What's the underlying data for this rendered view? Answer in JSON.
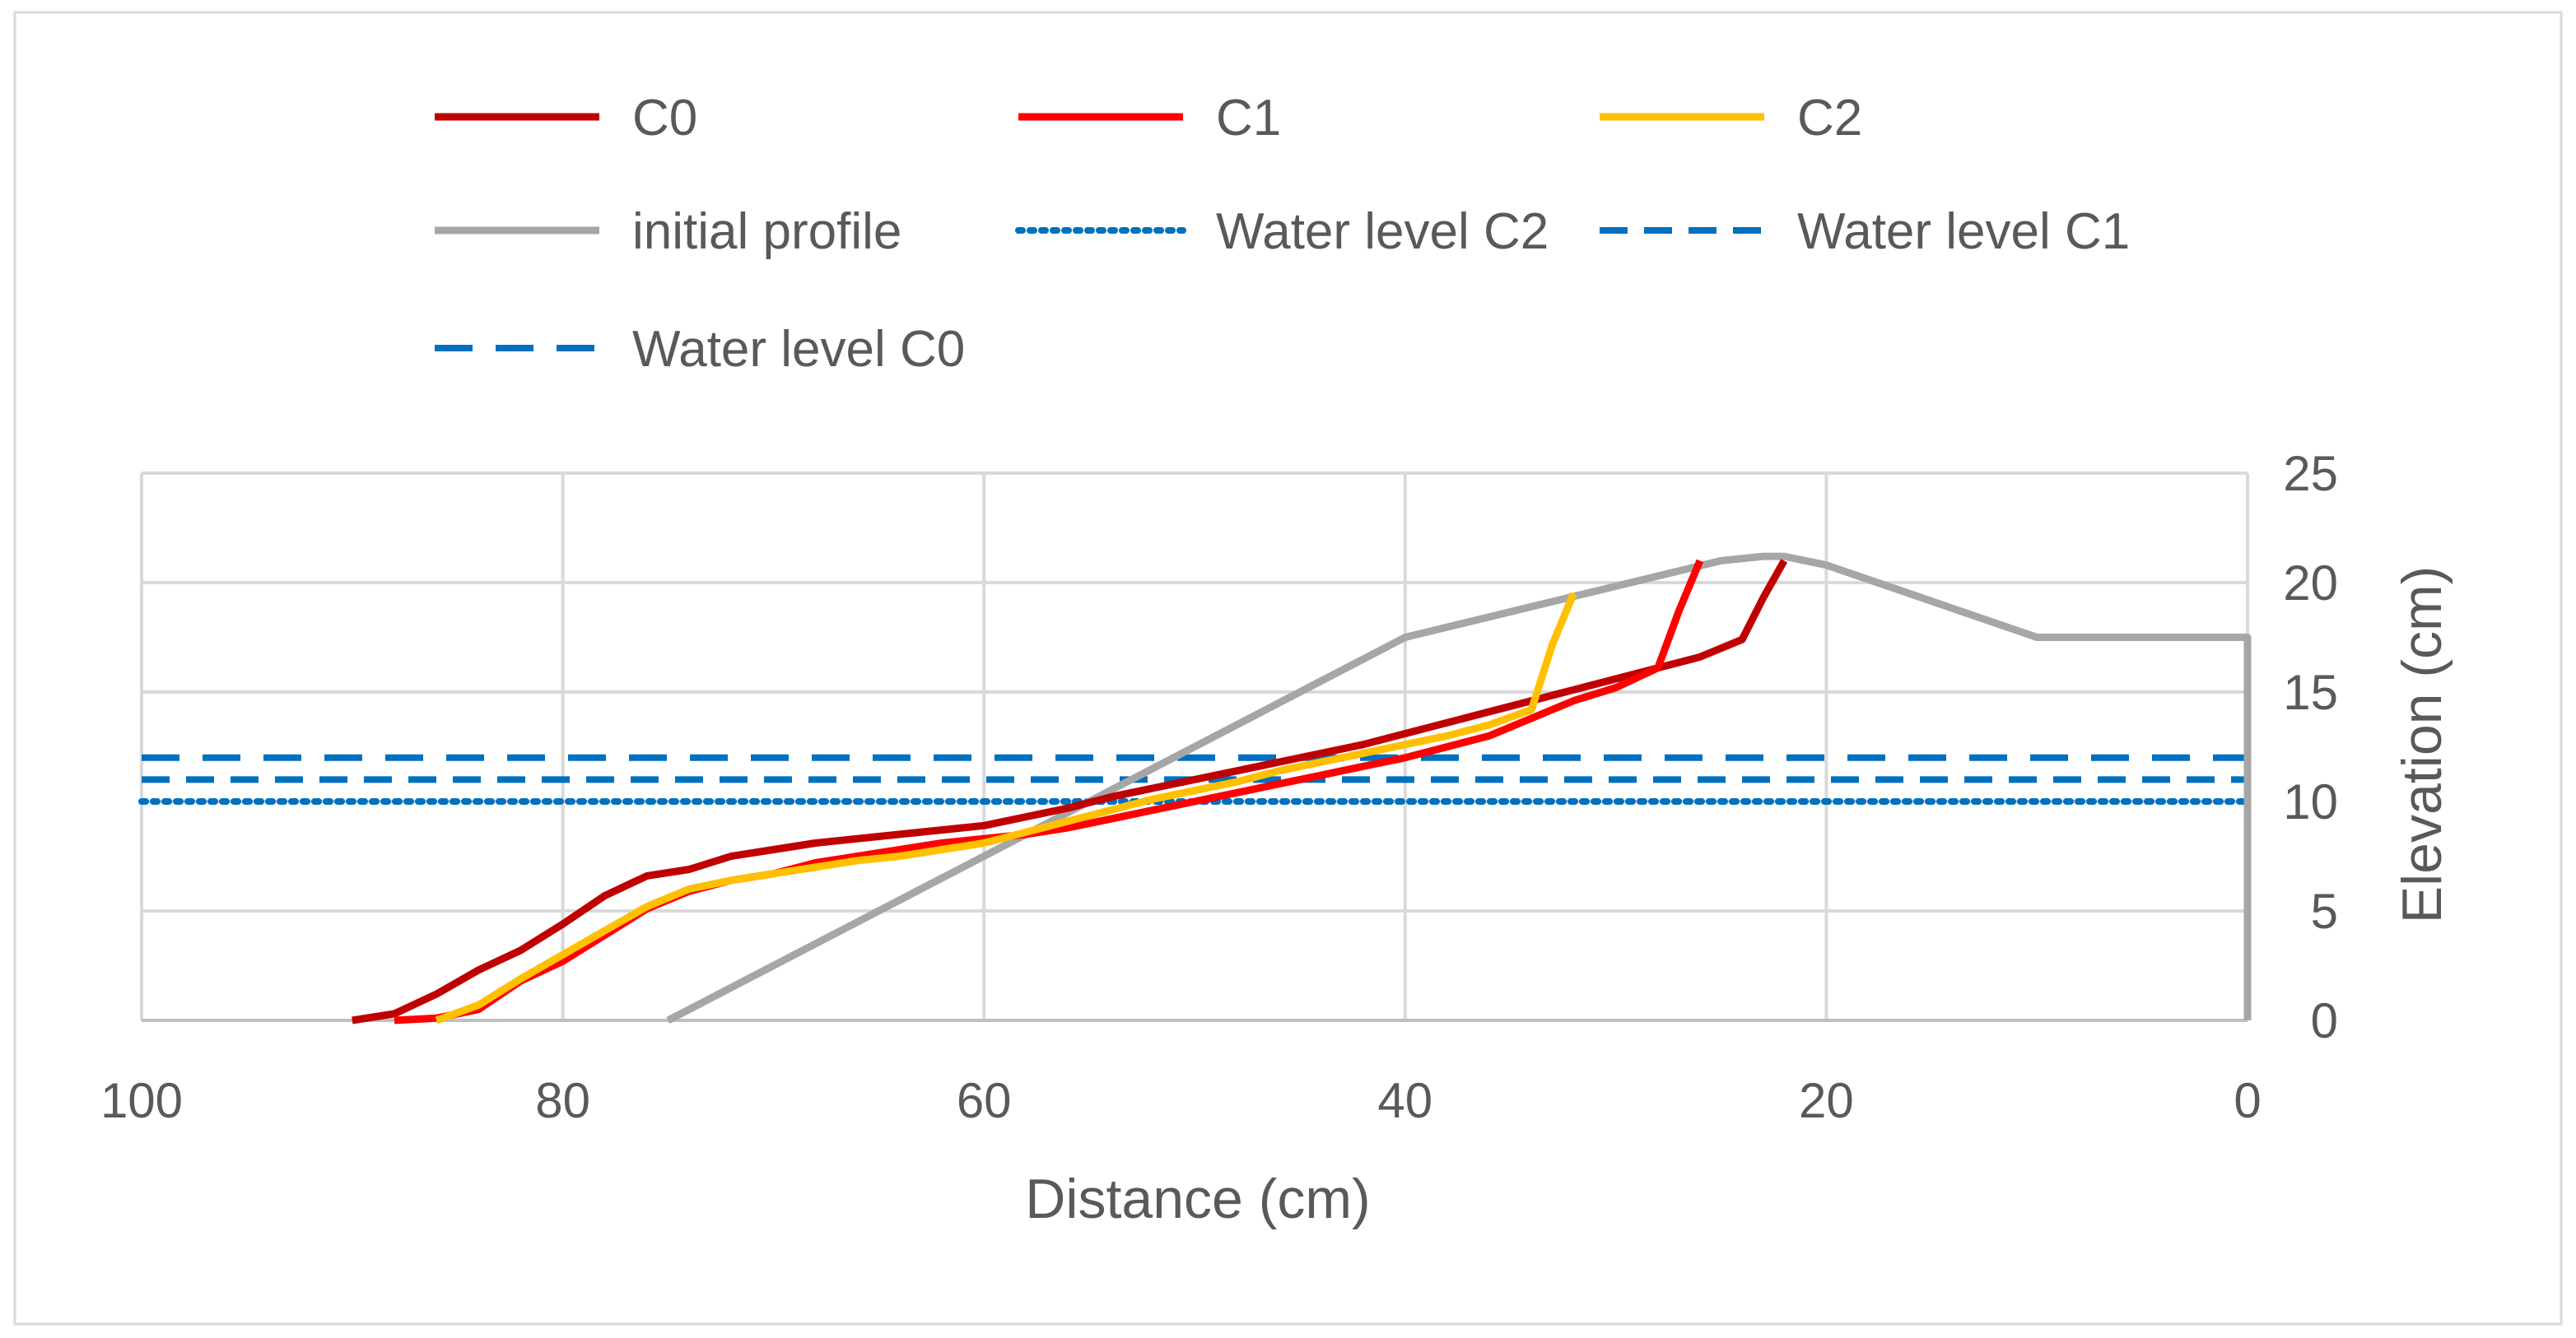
{
  "chart_data": {
    "type": "line",
    "title": "",
    "xlabel": "Distance  (cm)",
    "ylabel": "Elevation  (cm)",
    "xlim": [
      100,
      0
    ],
    "x_reversed": true,
    "ylim": [
      0,
      25
    ],
    "y_axis_side": "right",
    "xticks": [
      "100",
      "80",
      "60",
      "40",
      "20",
      "0"
    ],
    "yticks": [
      "0",
      "5",
      "10",
      "15",
      "20",
      "25"
    ],
    "grid": true,
    "legend_position": "top",
    "series": [
      {
        "name": "C0",
        "color": "#C00000",
        "style": "solid",
        "x": [
          90,
          88,
          86,
          84,
          82,
          80,
          78,
          76,
          74,
          72,
          70,
          68,
          66,
          64,
          62,
          60,
          58,
          56,
          54,
          52,
          50,
          48,
          46,
          44,
          42,
          40,
          38,
          36,
          34,
          32,
          30,
          28,
          26,
          24,
          23,
          22
        ],
        "y": [
          0,
          0.3,
          1.2,
          2.3,
          3.2,
          4.4,
          5.7,
          6.6,
          6.9,
          7.5,
          7.8,
          8.1,
          8.3,
          8.5,
          8.7,
          8.9,
          9.3,
          9.7,
          10.2,
          10.6,
          11,
          11.4,
          11.8,
          12.2,
          12.6,
          13.1,
          13.6,
          14.1,
          14.6,
          15.1,
          15.6,
          16.1,
          16.6,
          17.4,
          19.3,
          21
        ]
      },
      {
        "name": "C1",
        "color": "#FF0000",
        "style": "solid",
        "x": [
          88,
          86,
          84,
          82,
          80,
          78,
          76,
          74,
          72,
          70,
          68,
          66,
          64,
          62,
          60,
          58,
          56,
          54,
          52,
          50,
          48,
          46,
          44,
          42,
          40,
          38,
          36,
          34,
          32,
          30,
          28,
          27,
          26
        ],
        "y": [
          0,
          0.1,
          0.5,
          1.8,
          2.7,
          3.9,
          5.1,
          5.9,
          6.4,
          6.7,
          7.2,
          7.5,
          7.8,
          8.1,
          8.3,
          8.5,
          8.8,
          9.2,
          9.6,
          10,
          10.4,
          10.8,
          11.2,
          11.6,
          12,
          12.5,
          13,
          13.8,
          14.6,
          15.2,
          16.1,
          18.7,
          21
        ]
      },
      {
        "name": "C2",
        "color": "#FFC000",
        "style": "solid",
        "x": [
          86,
          84,
          82,
          80,
          78,
          76,
          74,
          72,
          70,
          68,
          66,
          64,
          62,
          60,
          58,
          56,
          54,
          52,
          50,
          48,
          46,
          44,
          42,
          40,
          38,
          36,
          34,
          33,
          32
        ],
        "y": [
          0,
          0.7,
          1.9,
          3,
          4.1,
          5.2,
          6,
          6.4,
          6.7,
          7,
          7.3,
          7.5,
          7.8,
          8.1,
          8.6,
          9.1,
          9.6,
          10.1,
          10.5,
          10.9,
          11.4,
          11.8,
          12.2,
          12.6,
          13,
          13.5,
          14.2,
          17.2,
          19.5
        ]
      },
      {
        "name": "initial profile",
        "color": "#A6A6A6",
        "style": "solid",
        "x": [
          75,
          40,
          25,
          23,
          22,
          20,
          10,
          0,
          0
        ],
        "y": [
          0,
          17.5,
          21,
          21.2,
          21.2,
          20.8,
          17.5,
          17.5,
          0
        ]
      },
      {
        "name": "Water level C2",
        "color": "#0070C0",
        "style": "dotted",
        "x": [
          100,
          0
        ],
        "y": [
          10,
          10
        ]
      },
      {
        "name": "Water level C1",
        "color": "#0070C0",
        "style": "dashed",
        "x": [
          100,
          0
        ],
        "y": [
          11,
          11
        ]
      },
      {
        "name": "Water level C0",
        "color": "#0070C0",
        "style": "long-dashed",
        "x": [
          100,
          0
        ],
        "y": [
          12,
          12
        ]
      }
    ],
    "legend": [
      {
        "name": "C0"
      },
      {
        "name": "C1"
      },
      {
        "name": "C2"
      },
      {
        "name": "initial profile"
      },
      {
        "name": "Water level C2"
      },
      {
        "name": "Water level C1"
      },
      {
        "name": "Water level C0"
      }
    ]
  }
}
